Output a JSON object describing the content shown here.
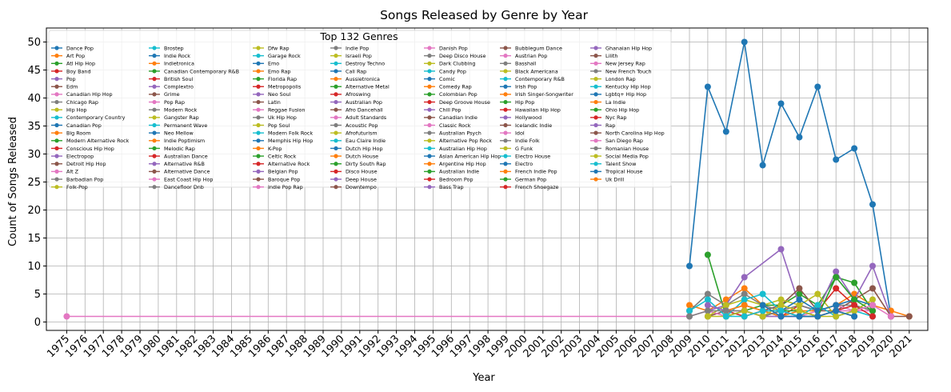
{
  "chart_data": {
    "type": "line",
    "title": "Songs Released by Genre by Year",
    "xlabel": "Year",
    "ylabel": "Count of Songs Released",
    "x": [
      "1975",
      "1976",
      "1977",
      "1978",
      "1979",
      "1980",
      "1981",
      "1982",
      "1983",
      "1984",
      "1985",
      "1986",
      "1987",
      "1988",
      "1989",
      "1990",
      "1991",
      "1992",
      "1993",
      "1994",
      "1995",
      "1996",
      "1997",
      "1998",
      "1999",
      "2000",
      "2001",
      "2002",
      "2003",
      "2004",
      "2005",
      "2006",
      "2007",
      "2008",
      "2009",
      "2010",
      "2011",
      "2012",
      "2013",
      "2014",
      "2015",
      "2016",
      "2017",
      "2018",
      "2019",
      "2020",
      "2021"
    ],
    "ylim": [
      -1.5,
      52.5
    ],
    "yticks": [
      0,
      5,
      10,
      15,
      20,
      25,
      30,
      35,
      40,
      45,
      50
    ],
    "grid": true,
    "legend": {
      "title": "Top 132 Genres",
      "placement": "upper-left",
      "columns": 10,
      "entries": [
        "Dance Pop",
        "Art Pop",
        "Atl Hip Hop",
        "Boy Band",
        "Pop",
        "Edm",
        "Canadian Hip Hop",
        "Chicago Rap",
        "Hip Hop",
        "Contemporary Country",
        "Canadian Pop",
        "Big Room",
        "Modern Alternative Rock",
        "Conscious Hip Hop",
        "Electropop",
        "Detroit Hip Hop",
        "Alt Z",
        "Barbadian Pop",
        "Folk-Pop",
        "Brostep",
        "Indie Rock",
        "Indietronica",
        "Canadian Contemporary R&B",
        "British Soul",
        "Complextro",
        "Grime",
        "Pop Rap",
        "Modern Rock",
        "Gangster Rap",
        "Permanent Wave",
        "Neo Mellow",
        "Indie Poptimism",
        "Melodic Rap",
        "Australian Dance",
        "Alternative R&B",
        "Alternative Dance",
        "East Coast Hip Hop",
        "Dancefloor Dnb",
        "Dfw Rap",
        "Garage Rock",
        "Emo",
        "Emo Rap",
        "Florida Rap",
        "Metropopolis",
        "Neo Soul",
        "Latin",
        "Reggae Fusion",
        "Uk Hip Hop",
        "Pop Soul",
        "Modern Folk Rock",
        "Memphis Hip Hop",
        "K-Pop",
        "Celtic Rock",
        "Alternative Rock",
        "Belgian Pop",
        "Baroque Pop",
        "Indie Pop Rap",
        "Indie Pop",
        "Israeli Pop",
        "Destroy Techno",
        "Cali Rap",
        "Aussietronica",
        "Alternative Metal",
        "Afroswing",
        "Australian Pop",
        "Afro Dancehall",
        "Adult Standards",
        "Acoustic Pop",
        "Afrofuturism",
        "Eau Claire Indie",
        "Dutch Hip Hop",
        "Dutch House",
        "Dirty South Rap",
        "Disco House",
        "Deep House",
        "Downtempo",
        "Danish Pop",
        "Deep Disco House",
        "Dark Clubbing",
        "Candy Pop",
        "Comic",
        "Comedy Rap",
        "Colombian Pop",
        "Deep Groove House",
        "Chill Pop",
        "Canadian Indie",
        "Classic Rock",
        "Australian Psych",
        "Alternative Pop Rock",
        "Australian Hip Hop",
        "Asian American Hip Hop",
        "Argentine Hip Hop",
        "Australian Indie",
        "Bedroom Pop",
        "Bass Trap",
        "Bubblegum Dance",
        "Austrian Pop",
        "Basshall",
        "Black Americana",
        "Contemporary R&B",
        "Irish Pop",
        "Irish Singer-Songwriter",
        "Hip Pop",
        "Hawaiian Hip Hop",
        "Hollywood",
        "Icelandic Indie",
        "Idol",
        "Indie Folk",
        "G Funk",
        "Electro House",
        "Electro",
        "French Indie Pop",
        "German Pop",
        "French Shoegaze",
        "Ghanaian Hip Hop",
        "Lilith",
        "New Jersey Rap",
        "New French Touch",
        "London Rap",
        "Kentucky Hip Hop",
        "Lgbtq+ Hip Hop",
        "La Indie",
        "Ohio Hip Hop",
        "Nyc Rap",
        "Rap",
        "North Carolina Hip Hop",
        "San Diego Rap",
        "Romanian House",
        "Social Media Pop",
        "Talent Show",
        "Tropical House",
        "Uk Drill"
      ]
    },
    "palette": [
      "#1f77b4",
      "#ff7f0e",
      "#2ca02c",
      "#d62728",
      "#9467bd",
      "#8c564b",
      "#e377c2",
      "#7f7f7f",
      "#bcbd22",
      "#17becf"
    ],
    "series": [
      {
        "label_ref": 0,
        "points": [
          [
            "2009",
            10
          ],
          [
            "2010",
            42
          ],
          [
            "2011",
            34
          ],
          [
            "2012",
            50
          ],
          [
            "2013",
            28
          ],
          [
            "2014",
            39
          ],
          [
            "2015",
            33
          ],
          [
            "2016",
            42
          ],
          [
            "2017",
            29
          ],
          [
            "2018",
            31
          ],
          [
            "2019",
            21
          ],
          [
            "2020",
            1
          ]
        ]
      },
      {
        "label_ref": 1,
        "points": [
          [
            "2009",
            3
          ],
          [
            "2010",
            2
          ],
          [
            "2011",
            4
          ],
          [
            "2012",
            6
          ],
          [
            "2013",
            3
          ],
          [
            "2014",
            3
          ],
          [
            "2015",
            2
          ],
          [
            "2016",
            2
          ],
          [
            "2017",
            3
          ],
          [
            "2018",
            5
          ],
          [
            "2019",
            3
          ],
          [
            "2020",
            2
          ],
          [
            "2021",
            1
          ]
        ]
      },
      {
        "label_ref": 2,
        "points": [
          [
            "2010",
            12
          ],
          [
            "2011",
            1
          ],
          [
            "2012",
            2
          ],
          [
            "2013",
            3
          ],
          [
            "2014",
            3
          ],
          [
            "2015",
            5
          ],
          [
            "2016",
            3
          ],
          [
            "2017",
            8
          ],
          [
            "2018",
            7
          ],
          [
            "2019",
            2
          ]
        ]
      },
      {
        "label_ref": 3,
        "points": [
          [
            "2011",
            2
          ],
          [
            "2012",
            1
          ],
          [
            "2013",
            2
          ],
          [
            "2014",
            1
          ],
          [
            "2015",
            3
          ],
          [
            "2016",
            2
          ],
          [
            "2017",
            6
          ],
          [
            "2018",
            3
          ],
          [
            "2019",
            2
          ]
        ]
      },
      {
        "label_ref": 4,
        "points": [
          [
            "2010",
            2
          ],
          [
            "2011",
            3
          ],
          [
            "2012",
            8
          ],
          [
            "2014",
            13
          ],
          [
            "2015",
            3
          ],
          [
            "2016",
            2
          ],
          [
            "2017",
            9
          ],
          [
            "2018",
            4
          ],
          [
            "2019",
            10
          ],
          [
            "2020",
            1
          ]
        ]
      },
      {
        "label_ref": 5,
        "points": [
          [
            "2010",
            1
          ],
          [
            "2011",
            2
          ],
          [
            "2012",
            3
          ],
          [
            "2013",
            2
          ],
          [
            "2014",
            3
          ],
          [
            "2015",
            6
          ],
          [
            "2016",
            2
          ],
          [
            "2017",
            2
          ],
          [
            "2018",
            4
          ],
          [
            "2019",
            6
          ],
          [
            "2020",
            1
          ],
          [
            "2021",
            1
          ]
        ]
      },
      {
        "label_ref": 6,
        "points": [
          [
            "1975",
            1
          ],
          [
            "2009",
            1
          ],
          [
            "2010",
            2
          ],
          [
            "2011",
            1
          ],
          [
            "2012",
            2
          ],
          [
            "2013",
            1
          ],
          [
            "2014",
            1
          ],
          [
            "2015",
            1
          ],
          [
            "2016",
            2
          ],
          [
            "2017",
            3
          ],
          [
            "2018",
            2
          ],
          [
            "2019",
            2
          ]
        ]
      },
      {
        "label_ref": 7,
        "points": [
          [
            "2009",
            2
          ],
          [
            "2010",
            5
          ],
          [
            "2011",
            3
          ],
          [
            "2012",
            5
          ],
          [
            "2013",
            3
          ],
          [
            "2014",
            2
          ],
          [
            "2015",
            3
          ],
          [
            "2016",
            2
          ],
          [
            "2017",
            3
          ],
          [
            "2018",
            3
          ],
          [
            "2019",
            2
          ]
        ]
      },
      {
        "label_ref": 8,
        "points": [
          [
            "2010",
            1
          ],
          [
            "2011",
            3
          ],
          [
            "2012",
            4
          ],
          [
            "2013",
            3
          ],
          [
            "2014",
            4
          ],
          [
            "2015",
            3
          ],
          [
            "2016",
            5
          ],
          [
            "2017",
            1
          ],
          [
            "2018",
            2
          ],
          [
            "2019",
            4
          ]
        ]
      },
      {
        "label_ref": 9,
        "points": [
          [
            "2009",
            2
          ],
          [
            "2010",
            4
          ],
          [
            "2011",
            1
          ],
          [
            "2012",
            4
          ],
          [
            "2013",
            5
          ],
          [
            "2014",
            2
          ],
          [
            "2015",
            1
          ],
          [
            "2016",
            3
          ],
          [
            "2017",
            1
          ],
          [
            "2018",
            2
          ],
          [
            "2019",
            1
          ]
        ]
      },
      {
        "label_ref": 10,
        "points": [
          [
            "2011",
            1
          ],
          [
            "2012",
            2
          ],
          [
            "2013",
            1
          ],
          [
            "2014",
            2
          ],
          [
            "2015",
            4
          ],
          [
            "2016",
            2
          ],
          [
            "2017",
            3
          ],
          [
            "2018",
            4
          ],
          [
            "2019",
            3
          ]
        ]
      },
      {
        "label_ref": 11,
        "points": [
          [
            "2011",
            2
          ],
          [
            "2012",
            3
          ],
          [
            "2013",
            2
          ],
          [
            "2014",
            1
          ],
          [
            "2015",
            2
          ],
          [
            "2016",
            1
          ]
        ]
      },
      {
        "label_ref": 12,
        "points": [
          [
            "2013",
            1
          ],
          [
            "2014",
            2
          ],
          [
            "2015",
            2
          ],
          [
            "2016",
            1
          ],
          [
            "2017",
            8
          ],
          [
            "2018",
            4
          ],
          [
            "2019",
            2
          ]
        ]
      },
      {
        "label_ref": 13,
        "points": [
          [
            "2015",
            1
          ],
          [
            "2016",
            1
          ],
          [
            "2017",
            2
          ],
          [
            "2018",
            3
          ],
          [
            "2019",
            1
          ]
        ]
      },
      {
        "label_ref": 14,
        "points": [
          [
            "2010",
            3
          ],
          [
            "2011",
            2
          ],
          [
            "2012",
            2
          ],
          [
            "2013",
            1
          ],
          [
            "2014",
            1
          ],
          [
            "2015",
            1
          ],
          [
            "2016",
            1
          ]
        ]
      },
      {
        "label_ref": 15,
        "points": [
          [
            "2014",
            2
          ],
          [
            "2015",
            1
          ],
          [
            "2016",
            1
          ],
          [
            "2017",
            2
          ],
          [
            "2018",
            1
          ]
        ]
      },
      {
        "label_ref": 16,
        "points": [
          [
            "2017",
            2
          ],
          [
            "2018",
            2
          ],
          [
            "2019",
            3
          ],
          [
            "2020",
            1
          ]
        ]
      },
      {
        "label_ref": 17,
        "points": [
          [
            "2009",
            1
          ],
          [
            "2010",
            2
          ],
          [
            "2011",
            2
          ],
          [
            "2012",
            2
          ],
          [
            "2013",
            1
          ],
          [
            "2014",
            2
          ],
          [
            "2015",
            1
          ],
          [
            "2016",
            1
          ]
        ]
      },
      {
        "label_ref": 18,
        "points": [
          [
            "2010",
            1
          ],
          [
            "2011",
            1
          ],
          [
            "2012",
            2
          ],
          [
            "2013",
            1
          ],
          [
            "2014",
            3
          ],
          [
            "2015",
            2
          ],
          [
            "2016",
            1
          ],
          [
            "2017",
            1
          ],
          [
            "2018",
            2
          ]
        ]
      },
      {
        "label_ref": 19,
        "points": [
          [
            "2011",
            1
          ],
          [
            "2012",
            1
          ],
          [
            "2013",
            2
          ],
          [
            "2014",
            2
          ],
          [
            "2015",
            1
          ]
        ]
      },
      {
        "label_ref": 20,
        "points": [
          [
            "2013",
            3
          ],
          [
            "2014",
            1
          ],
          [
            "2015",
            1
          ],
          [
            "2016",
            1
          ],
          [
            "2017",
            2
          ],
          [
            "2018",
            1
          ]
        ]
      }
    ]
  }
}
